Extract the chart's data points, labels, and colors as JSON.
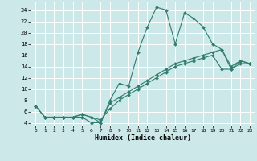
{
  "xlabel": "Humidex (Indice chaleur)",
  "xlim": [
    -0.5,
    23.5
  ],
  "ylim": [
    3.5,
    25.5
  ],
  "yticks": [
    4,
    6,
    8,
    10,
    12,
    14,
    16,
    18,
    20,
    22,
    24
  ],
  "xticks": [
    0,
    1,
    2,
    3,
    4,
    5,
    6,
    7,
    8,
    9,
    10,
    11,
    12,
    13,
    14,
    15,
    16,
    17,
    18,
    19,
    20,
    21,
    22,
    23
  ],
  "bg_color": "#cce8e8",
  "grid_color": "#ffffff",
  "line_color": "#2e7d6e",
  "series": [
    {
      "x": [
        0,
        1,
        2,
        3,
        4,
        5,
        6,
        7,
        8,
        9,
        10,
        11,
        12,
        13,
        14,
        15,
        16,
        17,
        18,
        19,
        20,
        21,
        22,
        23
      ],
      "y": [
        7,
        5,
        5,
        5,
        5,
        5,
        4,
        4,
        8,
        11,
        10.5,
        16.5,
        21,
        24.5,
        24,
        18,
        23.5,
        22.5,
        21,
        18,
        17,
        14,
        15,
        14.5
      ]
    },
    {
      "x": [
        0,
        1,
        2,
        3,
        4,
        5,
        6,
        7,
        8,
        9,
        10,
        11,
        12,
        13,
        14,
        15,
        16,
        17,
        18,
        19,
        20,
        21,
        22,
        23
      ],
      "y": [
        7,
        5,
        5,
        5,
        5,
        5.5,
        5,
        4,
        7.5,
        8.5,
        9.5,
        10.5,
        11.5,
        12.5,
        13.5,
        14.5,
        15,
        15.5,
        16,
        16.5,
        17,
        13.5,
        15,
        14.5
      ]
    },
    {
      "x": [
        0,
        1,
        2,
        3,
        4,
        5,
        6,
        7,
        8,
        9,
        10,
        11,
        12,
        13,
        14,
        15,
        16,
        17,
        18,
        19,
        20,
        21,
        22,
        23
      ],
      "y": [
        7,
        5,
        5,
        5,
        5,
        5.5,
        5,
        4.5,
        6.5,
        8,
        9,
        10,
        11,
        12,
        13,
        14,
        14.5,
        15,
        15.5,
        16,
        13.5,
        13.5,
        14.5,
        14.5
      ]
    }
  ]
}
